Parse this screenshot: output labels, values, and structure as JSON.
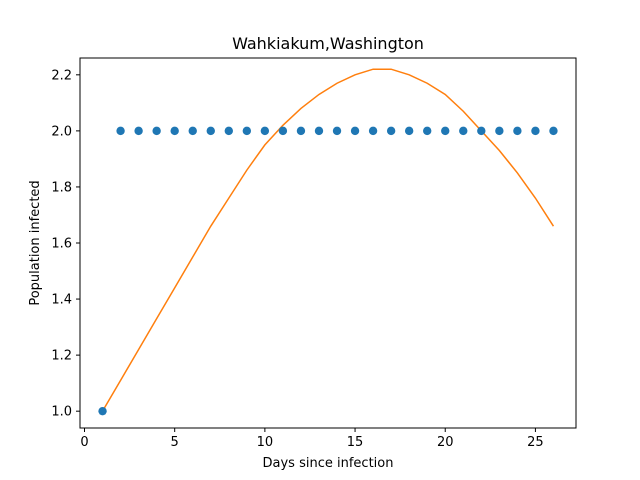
{
  "chart_data": {
    "type": "scatter",
    "title": "Wahkiakum,Washington",
    "xlabel": "Days since infection",
    "ylabel": "Population infected",
    "xlim": [
      -0.25,
      27.25
    ],
    "ylim": [
      0.94,
      2.26
    ],
    "xticks": [
      0,
      5,
      10,
      15,
      20,
      25
    ],
    "yticks": [
      1.0,
      1.2,
      1.4,
      1.6,
      1.8,
      2.0,
      2.2
    ],
    "grid": false,
    "series": [
      {
        "kind": "scatter",
        "color": "#1f77b4",
        "x": [
          1,
          2,
          3,
          4,
          5,
          6,
          7,
          8,
          9,
          10,
          11,
          12,
          13,
          14,
          15,
          16,
          17,
          18,
          19,
          20,
          21,
          22,
          23,
          24,
          25,
          26
        ],
        "y": [
          1.0,
          2.0,
          2.0,
          2.0,
          2.0,
          2.0,
          2.0,
          2.0,
          2.0,
          2.0,
          2.0,
          2.0,
          2.0,
          2.0,
          2.0,
          2.0,
          2.0,
          2.0,
          2.0,
          2.0,
          2.0,
          2.0,
          2.0,
          2.0,
          2.0,
          2.0
        ]
      },
      {
        "kind": "line",
        "color": "#ff7f0e",
        "x": [
          1,
          2,
          3,
          4,
          5,
          6,
          7,
          8,
          9,
          10,
          11,
          12,
          13,
          14,
          15,
          16,
          17,
          18,
          19,
          20,
          21,
          22,
          23,
          24,
          25,
          26
        ],
        "y": [
          1.0,
          1.11,
          1.22,
          1.33,
          1.44,
          1.55,
          1.66,
          1.76,
          1.86,
          1.95,
          2.02,
          2.08,
          2.13,
          2.17,
          2.2,
          2.22,
          2.22,
          2.2,
          2.17,
          2.13,
          2.07,
          2.0,
          1.93,
          1.85,
          1.76,
          1.66
        ]
      }
    ]
  }
}
